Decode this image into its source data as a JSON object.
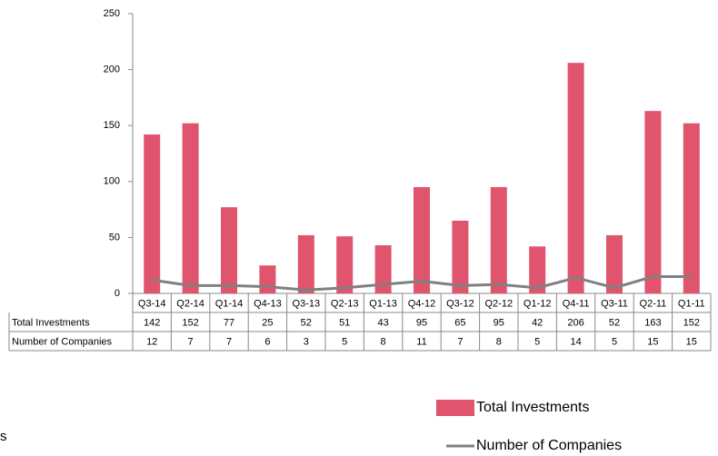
{
  "chart_data": {
    "type": "bar",
    "categories": [
      "Q3-14",
      "Q2-14",
      "Q1-14",
      "Q4-13",
      "Q3-13",
      "Q2-13",
      "Q1-13",
      "Q4-12",
      "Q3-12",
      "Q2-12",
      "Q1-12",
      "Q4-11",
      "Q3-11",
      "Q2-11",
      "Q1-11"
    ],
    "series": [
      {
        "name": "Total Investments",
        "type": "bar",
        "color": "#e0546e",
        "values": [
          142,
          152,
          77,
          25,
          52,
          51,
          43,
          95,
          65,
          95,
          42,
          206,
          52,
          163,
          152
        ]
      },
      {
        "name": "Number of Companies",
        "type": "line",
        "color": "#808080",
        "values": [
          12,
          7,
          7,
          6,
          3,
          5,
          8,
          11,
          7,
          8,
          5,
          14,
          5,
          15,
          15
        ]
      }
    ],
    "ylim": [
      0,
      250
    ],
    "yticks": [
      0,
      50,
      100,
      150,
      200,
      250
    ],
    "grid": false,
    "annotation": "s"
  }
}
